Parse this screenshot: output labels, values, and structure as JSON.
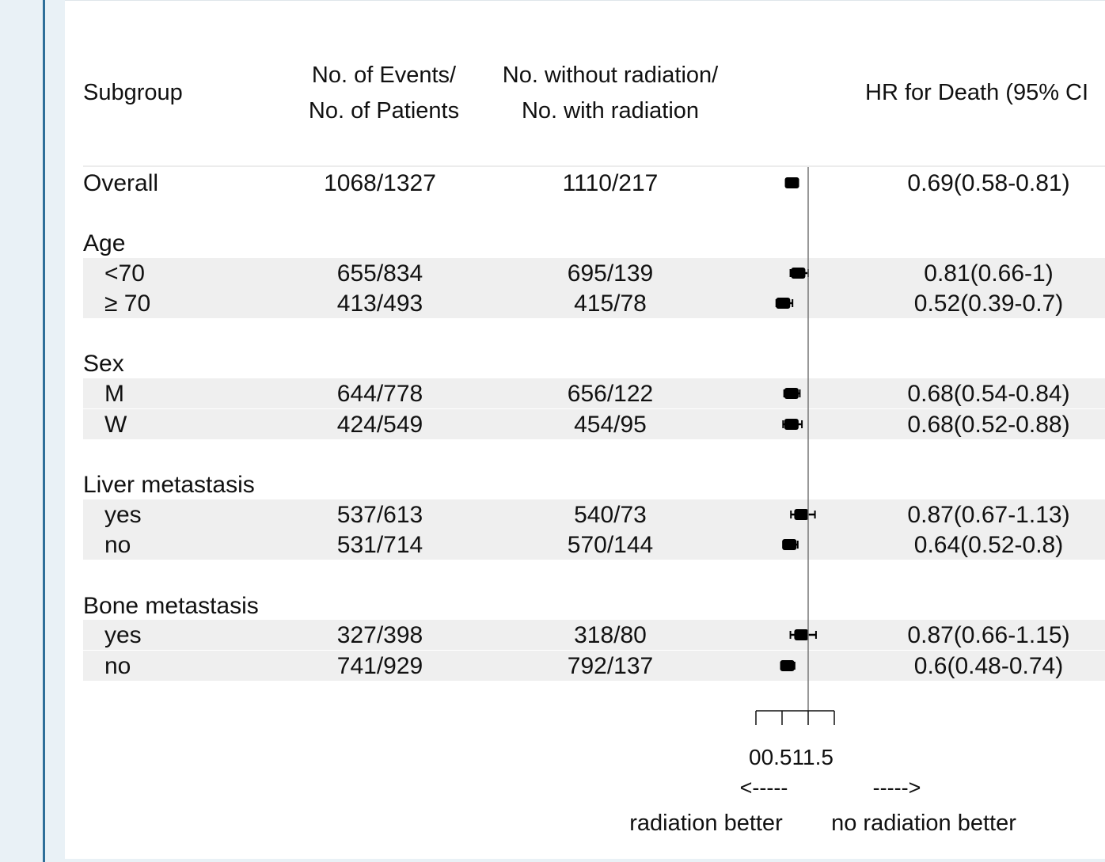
{
  "chart_data": {
    "type": "forest",
    "headers": {
      "subgroup": "Subgroup",
      "events_line1": "No. of Events/",
      "events_line2": "No. of Patients",
      "radiation_line1": "No. without radiation/",
      "radiation_line2": "No. with radiation",
      "hr": "HR for Death (95% CI"
    },
    "rows": [
      {
        "kind": "item",
        "label": "Overall",
        "indent": false,
        "shaded": false,
        "events": "1068/1327",
        "radiation": "1110/217",
        "hr": 0.69,
        "lower": 0.58,
        "upper": 0.81,
        "hr_text": "0.69(0.58-0.81)"
      },
      {
        "kind": "group",
        "label": "Age"
      },
      {
        "kind": "item",
        "label": "<70",
        "indent": true,
        "shaded": true,
        "events": "655/834",
        "radiation": "695/139",
        "hr": 0.81,
        "lower": 0.66,
        "upper": 1.0,
        "hr_text": "0.81(0.66-1)"
      },
      {
        "kind": "item",
        "label": "≥ 70",
        "indent": true,
        "shaded": true,
        "events": "413/493",
        "radiation": "415/78",
        "hr": 0.52,
        "lower": 0.39,
        "upper": 0.7,
        "hr_text": "0.52(0.39-0.7)"
      },
      {
        "kind": "group",
        "label": "Sex"
      },
      {
        "kind": "item",
        "label": "M",
        "indent": true,
        "shaded": true,
        "events": "644/778",
        "radiation": "656/122",
        "hr": 0.68,
        "lower": 0.54,
        "upper": 0.84,
        "hr_text": "0.68(0.54-0.84)"
      },
      {
        "kind": "item",
        "label": "W",
        "indent": true,
        "shaded": true,
        "events": "424/549",
        "radiation": "454/95",
        "hr": 0.68,
        "lower": 0.52,
        "upper": 0.88,
        "hr_text": "0.68(0.52-0.88)"
      },
      {
        "kind": "group",
        "label": "Liver metastasis"
      },
      {
        "kind": "item",
        "label": "yes",
        "indent": true,
        "shaded": true,
        "events": "537/613",
        "radiation": "540/73",
        "hr": 0.87,
        "lower": 0.67,
        "upper": 1.13,
        "hr_text": "0.87(0.67-1.13)"
      },
      {
        "kind": "item",
        "label": "no",
        "indent": true,
        "shaded": true,
        "events": "531/714",
        "radiation": "570/144",
        "hr": 0.64,
        "lower": 0.52,
        "upper": 0.8,
        "hr_text": "0.64(0.52-0.8)"
      },
      {
        "kind": "group",
        "label": "Bone metastasis"
      },
      {
        "kind": "item",
        "label": "yes",
        "indent": true,
        "shaded": true,
        "events": "327/398",
        "radiation": "318/80",
        "hr": 0.87,
        "lower": 0.66,
        "upper": 1.15,
        "hr_text": "0.87(0.66-1.15)"
      },
      {
        "kind": "item",
        "label": "no",
        "indent": true,
        "shaded": true,
        "events": "741/929",
        "radiation": "792/137",
        "hr": 0.6,
        "lower": 0.48,
        "upper": 0.74,
        "hr_text": "0.6(0.48-0.74)"
      }
    ],
    "x_axis": {
      "ticks": [
        0,
        0.5,
        1,
        1.5
      ],
      "tick_labels": [
        "0",
        "0.5",
        "1",
        "1.5"
      ],
      "range": [
        0,
        1.5
      ],
      "reference_line": 1
    },
    "annotations": {
      "left_arrow": "<-----",
      "right_arrow": "----->",
      "left_label": "radiation better",
      "right_label": "no radiation better"
    },
    "colors": {
      "marker": "#000000",
      "shade": "#efefef",
      "reference_line": "#777777"
    }
  }
}
